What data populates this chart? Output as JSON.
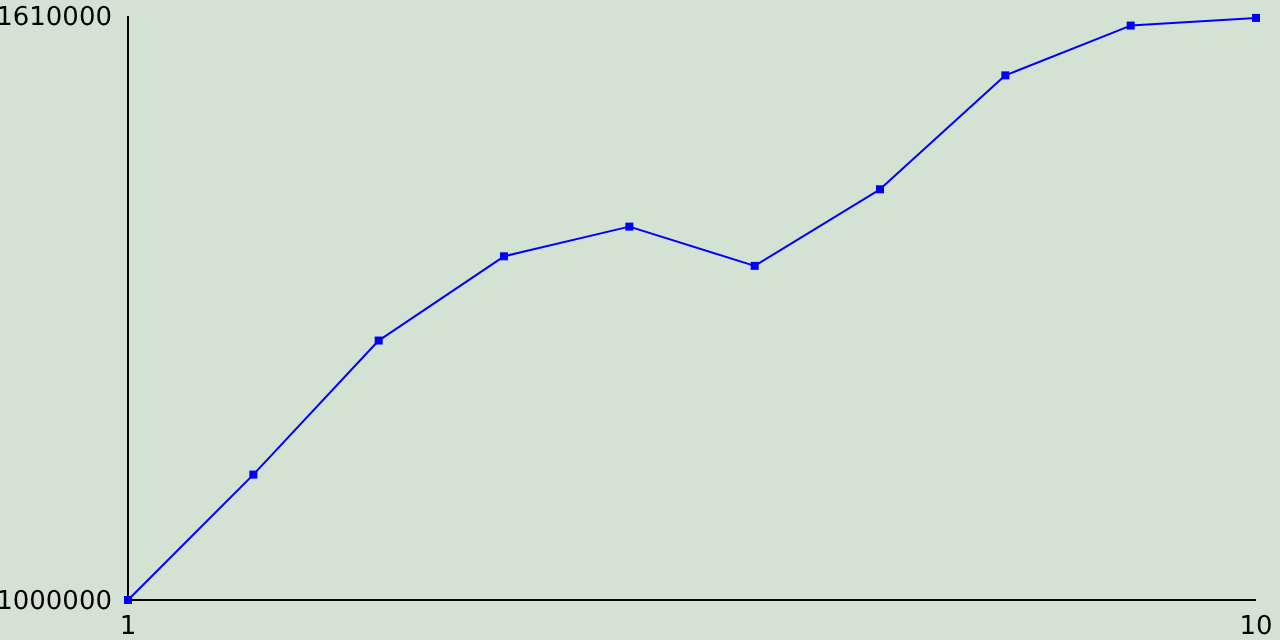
{
  "chart_data": {
    "type": "line",
    "x": [
      1,
      2,
      3,
      4,
      5,
      6,
      7,
      8,
      9,
      10
    ],
    "series": [
      {
        "color": "#0000ff",
        "values": [
          1000000,
          1131000,
          1271000,
          1359000,
          1390000,
          1349000,
          1429000,
          1548000,
          1600000,
          1608000
        ]
      }
    ],
    "xlim": [
      1,
      10
    ],
    "xticks": [
      1,
      10
    ],
    "ylim": [
      1000000,
      1610000
    ],
    "yticks": [
      1000000,
      1610000
    ],
    "grid": false,
    "legend": false,
    "marker": "square",
    "line_style": "solid"
  }
}
